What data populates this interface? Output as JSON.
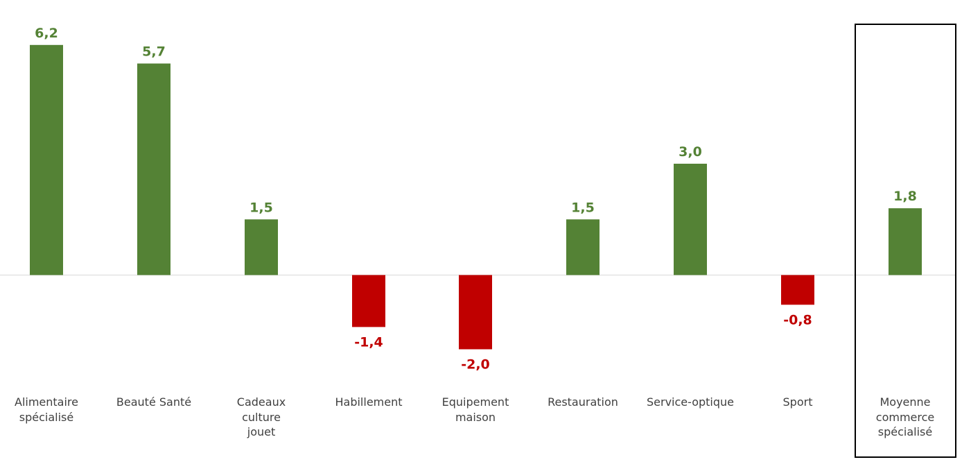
{
  "chart_data": {
    "type": "bar",
    "categories": [
      "Alimentaire spécialisé",
      "Beauté Santé",
      "Cadeaux culture jouet",
      "Habillement",
      "Equipement maison",
      "Restauration",
      "Service-optique",
      "Sport",
      "Moyenne commerce spécialisé"
    ],
    "category_lines": [
      [
        "Alimentaire",
        "spécialisé"
      ],
      [
        "Beauté Santé"
      ],
      [
        "Cadeaux",
        "culture",
        "jouet"
      ],
      [
        "Habillement"
      ],
      [
        "Equipement",
        "maison"
      ],
      [
        "Restauration"
      ],
      [
        "Service-optique"
      ],
      [
        "Sport"
      ],
      [
        "Moyenne",
        "commerce",
        "spécialisé"
      ]
    ],
    "values": [
      6.2,
      5.7,
      1.5,
      -1.4,
      -2.0,
      1.5,
      3.0,
      -0.8,
      1.8
    ],
    "value_labels": [
      "6,2",
      "5,7",
      "1,5",
      "-1,4",
      "-2,0",
      "1,5",
      "3,0",
      "-0,8",
      "1,8"
    ],
    "highlighted_category": "Moyenne commerce spécialisé",
    "positive_color": "#548235",
    "negative_color": "#C00000",
    "axis_line_color": "#D9D9D9",
    "label_color": "#404040",
    "title": "",
    "xlabel": "",
    "ylabel": "",
    "grid": false,
    "legend": "none"
  }
}
